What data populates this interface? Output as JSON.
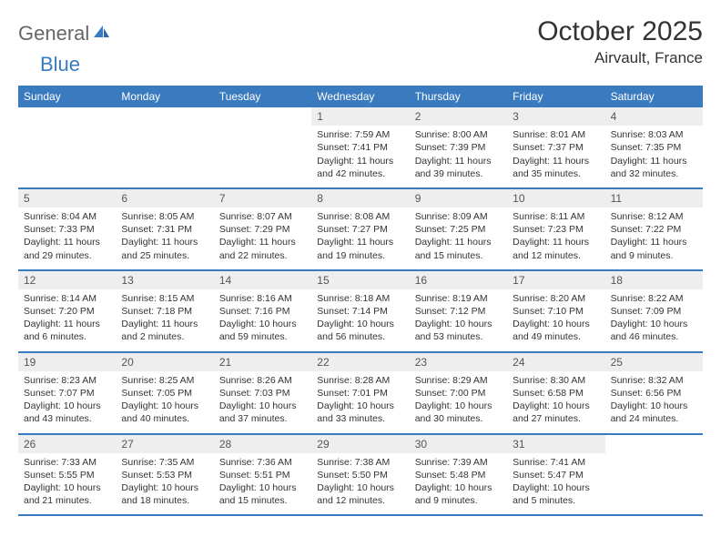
{
  "logo": {
    "text1": "General",
    "text2": "Blue"
  },
  "title": "October 2025",
  "location": "Airvault, France",
  "colors": {
    "header_bg": "#3a7bbf",
    "header_text": "#ffffff",
    "daynum_bg": "#eeeeee",
    "row_border": "#3a7bbf",
    "body_text": "#333333"
  },
  "weekdays": [
    "Sunday",
    "Monday",
    "Tuesday",
    "Wednesday",
    "Thursday",
    "Friday",
    "Saturday"
  ],
  "weeks": [
    [
      null,
      null,
      null,
      {
        "n": "1",
        "sunrise": "7:59 AM",
        "sunset": "7:41 PM",
        "daylight": "11 hours and 42 minutes."
      },
      {
        "n": "2",
        "sunrise": "8:00 AM",
        "sunset": "7:39 PM",
        "daylight": "11 hours and 39 minutes."
      },
      {
        "n": "3",
        "sunrise": "8:01 AM",
        "sunset": "7:37 PM",
        "daylight": "11 hours and 35 minutes."
      },
      {
        "n": "4",
        "sunrise": "8:03 AM",
        "sunset": "7:35 PM",
        "daylight": "11 hours and 32 minutes."
      }
    ],
    [
      {
        "n": "5",
        "sunrise": "8:04 AM",
        "sunset": "7:33 PM",
        "daylight": "11 hours and 29 minutes."
      },
      {
        "n": "6",
        "sunrise": "8:05 AM",
        "sunset": "7:31 PM",
        "daylight": "11 hours and 25 minutes."
      },
      {
        "n": "7",
        "sunrise": "8:07 AM",
        "sunset": "7:29 PM",
        "daylight": "11 hours and 22 minutes."
      },
      {
        "n": "8",
        "sunrise": "8:08 AM",
        "sunset": "7:27 PM",
        "daylight": "11 hours and 19 minutes."
      },
      {
        "n": "9",
        "sunrise": "8:09 AM",
        "sunset": "7:25 PM",
        "daylight": "11 hours and 15 minutes."
      },
      {
        "n": "10",
        "sunrise": "8:11 AM",
        "sunset": "7:23 PM",
        "daylight": "11 hours and 12 minutes."
      },
      {
        "n": "11",
        "sunrise": "8:12 AM",
        "sunset": "7:22 PM",
        "daylight": "11 hours and 9 minutes."
      }
    ],
    [
      {
        "n": "12",
        "sunrise": "8:14 AM",
        "sunset": "7:20 PM",
        "daylight": "11 hours and 6 minutes."
      },
      {
        "n": "13",
        "sunrise": "8:15 AM",
        "sunset": "7:18 PM",
        "daylight": "11 hours and 2 minutes."
      },
      {
        "n": "14",
        "sunrise": "8:16 AM",
        "sunset": "7:16 PM",
        "daylight": "10 hours and 59 minutes."
      },
      {
        "n": "15",
        "sunrise": "8:18 AM",
        "sunset": "7:14 PM",
        "daylight": "10 hours and 56 minutes."
      },
      {
        "n": "16",
        "sunrise": "8:19 AM",
        "sunset": "7:12 PM",
        "daylight": "10 hours and 53 minutes."
      },
      {
        "n": "17",
        "sunrise": "8:20 AM",
        "sunset": "7:10 PM",
        "daylight": "10 hours and 49 minutes."
      },
      {
        "n": "18",
        "sunrise": "8:22 AM",
        "sunset": "7:09 PM",
        "daylight": "10 hours and 46 minutes."
      }
    ],
    [
      {
        "n": "19",
        "sunrise": "8:23 AM",
        "sunset": "7:07 PM",
        "daylight": "10 hours and 43 minutes."
      },
      {
        "n": "20",
        "sunrise": "8:25 AM",
        "sunset": "7:05 PM",
        "daylight": "10 hours and 40 minutes."
      },
      {
        "n": "21",
        "sunrise": "8:26 AM",
        "sunset": "7:03 PM",
        "daylight": "10 hours and 37 minutes."
      },
      {
        "n": "22",
        "sunrise": "8:28 AM",
        "sunset": "7:01 PM",
        "daylight": "10 hours and 33 minutes."
      },
      {
        "n": "23",
        "sunrise": "8:29 AM",
        "sunset": "7:00 PM",
        "daylight": "10 hours and 30 minutes."
      },
      {
        "n": "24",
        "sunrise": "8:30 AM",
        "sunset": "6:58 PM",
        "daylight": "10 hours and 27 minutes."
      },
      {
        "n": "25",
        "sunrise": "8:32 AM",
        "sunset": "6:56 PM",
        "daylight": "10 hours and 24 minutes."
      }
    ],
    [
      {
        "n": "26",
        "sunrise": "7:33 AM",
        "sunset": "5:55 PM",
        "daylight": "10 hours and 21 minutes."
      },
      {
        "n": "27",
        "sunrise": "7:35 AM",
        "sunset": "5:53 PM",
        "daylight": "10 hours and 18 minutes."
      },
      {
        "n": "28",
        "sunrise": "7:36 AM",
        "sunset": "5:51 PM",
        "daylight": "10 hours and 15 minutes."
      },
      {
        "n": "29",
        "sunrise": "7:38 AM",
        "sunset": "5:50 PM",
        "daylight": "10 hours and 12 minutes."
      },
      {
        "n": "30",
        "sunrise": "7:39 AM",
        "sunset": "5:48 PM",
        "daylight": "10 hours and 9 minutes."
      },
      {
        "n": "31",
        "sunrise": "7:41 AM",
        "sunset": "5:47 PM",
        "daylight": "10 hours and 5 minutes."
      },
      null
    ]
  ],
  "labels": {
    "sunrise": "Sunrise:",
    "sunset": "Sunset:",
    "daylight": "Daylight:"
  }
}
